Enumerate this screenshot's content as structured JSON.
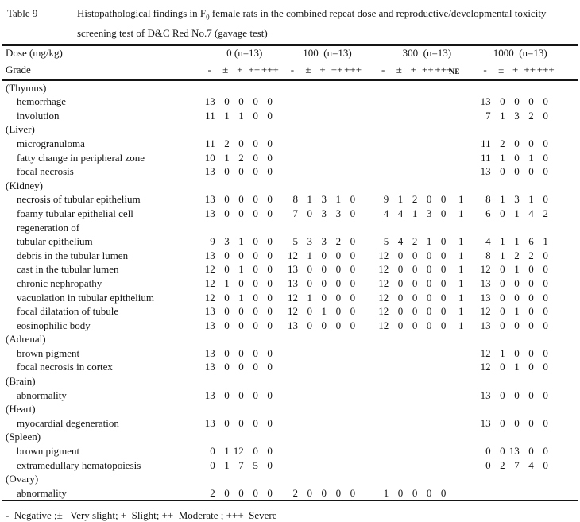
{
  "header": {
    "table_label": "Table 9",
    "title_pre": "Histopathological findings in F",
    "title_sub": "0",
    "title_line1_rest": " female rats in the combined repeat dose and reproductive/developmental toxicity",
    "title_line2": "screening test of D&C Red No.7 (gavage test)"
  },
  "table": {
    "dose_label": "Dose (mg/kg)",
    "grade_label": "Grade",
    "groups": [
      {
        "dose_label": "0 (n=13)",
        "grades": [
          "-",
          "±",
          "+",
          "++",
          "+++"
        ]
      },
      {
        "dose_label": "100  (n=13)",
        "grades": [
          "-",
          "±",
          "+",
          "++",
          "+++"
        ]
      },
      {
        "dose_label": "300  (n=13)",
        "grades": [
          "-",
          "±",
          "+",
          "++",
          "+++",
          "NE"
        ]
      },
      {
        "dose_label": "1000  (n=13)",
        "grades": [
          "-",
          "±",
          "+",
          "++",
          "+++"
        ]
      }
    ],
    "rows": [
      {
        "type": "organ",
        "label": "(Thymus)",
        "values": [
          [],
          [],
          [],
          []
        ]
      },
      {
        "type": "finding",
        "label": "hemorrhage",
        "values": [
          [
            13,
            0,
            0,
            0,
            0
          ],
          [],
          [],
          [
            13,
            0,
            0,
            0,
            0
          ]
        ]
      },
      {
        "type": "finding",
        "label": "involution",
        "values": [
          [
            11,
            1,
            1,
            0,
            0
          ],
          [],
          [],
          [
            7,
            1,
            3,
            2,
            0
          ]
        ]
      },
      {
        "type": "organ",
        "label": "(Liver)",
        "values": [
          [],
          [],
          [],
          []
        ]
      },
      {
        "type": "finding",
        "label": "microgranuloma",
        "values": [
          [
            11,
            2,
            0,
            0,
            0
          ],
          [],
          [],
          [
            11,
            2,
            0,
            0,
            0
          ]
        ]
      },
      {
        "type": "finding",
        "label": "fatty change in peripheral zone",
        "values": [
          [
            10,
            1,
            2,
            0,
            0
          ],
          [],
          [],
          [
            11,
            1,
            0,
            1,
            0
          ]
        ]
      },
      {
        "type": "finding",
        "label": "focal necrosis",
        "values": [
          [
            13,
            0,
            0,
            0,
            0
          ],
          [],
          [],
          [
            13,
            0,
            0,
            0,
            0
          ]
        ]
      },
      {
        "type": "organ",
        "label": "(Kidney)",
        "values": [
          [],
          [],
          [],
          []
        ]
      },
      {
        "type": "finding",
        "label": "necrosis of tubular epithelium",
        "values": [
          [
            13,
            0,
            0,
            0,
            0
          ],
          [
            8,
            1,
            3,
            1,
            0
          ],
          [
            9,
            1,
            2,
            0,
            0,
            1
          ],
          [
            8,
            1,
            3,
            1,
            0
          ]
        ]
      },
      {
        "type": "finding",
        "label": "foamy tubular epithelial cell",
        "values": [
          [
            13,
            0,
            0,
            0,
            0
          ],
          [
            7,
            0,
            3,
            3,
            0
          ],
          [
            4,
            4,
            1,
            3,
            0,
            1
          ],
          [
            6,
            0,
            1,
            4,
            2
          ]
        ]
      },
      {
        "type": "finding",
        "label": "regeneration of",
        "values": [
          [],
          [],
          [],
          []
        ]
      },
      {
        "type": "finding",
        "label": "tubular epithelium",
        "values": [
          [
            9,
            3,
            1,
            0,
            0
          ],
          [
            5,
            3,
            3,
            2,
            0
          ],
          [
            5,
            4,
            2,
            1,
            0,
            1
          ],
          [
            4,
            1,
            1,
            6,
            1
          ]
        ]
      },
      {
        "type": "finding",
        "label": "debris in the tubular lumen",
        "values": [
          [
            13,
            0,
            0,
            0,
            0
          ],
          [
            12,
            1,
            0,
            0,
            0
          ],
          [
            12,
            0,
            0,
            0,
            0,
            1
          ],
          [
            8,
            1,
            2,
            2,
            0
          ]
        ]
      },
      {
        "type": "finding",
        "label": "cast in the tubular lumen",
        "values": [
          [
            12,
            0,
            1,
            0,
            0
          ],
          [
            13,
            0,
            0,
            0,
            0
          ],
          [
            12,
            0,
            0,
            0,
            0,
            1
          ],
          [
            12,
            0,
            1,
            0,
            0
          ]
        ]
      },
      {
        "type": "finding",
        "label": "chronic nephropathy",
        "values": [
          [
            12,
            1,
            0,
            0,
            0
          ],
          [
            13,
            0,
            0,
            0,
            0
          ],
          [
            12,
            0,
            0,
            0,
            0,
            1
          ],
          [
            13,
            0,
            0,
            0,
            0
          ]
        ]
      },
      {
        "type": "finding",
        "label": "vacuolation in tubular epithelium",
        "values": [
          [
            12,
            0,
            1,
            0,
            0
          ],
          [
            12,
            1,
            0,
            0,
            0
          ],
          [
            12,
            0,
            0,
            0,
            0,
            1
          ],
          [
            13,
            0,
            0,
            0,
            0
          ]
        ]
      },
      {
        "type": "finding",
        "label": "focal dilatation of tubule",
        "values": [
          [
            13,
            0,
            0,
            0,
            0
          ],
          [
            12,
            0,
            1,
            0,
            0
          ],
          [
            12,
            0,
            0,
            0,
            0,
            1
          ],
          [
            12,
            0,
            1,
            0,
            0
          ]
        ]
      },
      {
        "type": "finding",
        "label": "eosinophilic body",
        "values": [
          [
            13,
            0,
            0,
            0,
            0
          ],
          [
            13,
            0,
            0,
            0,
            0
          ],
          [
            12,
            0,
            0,
            0,
            0,
            1
          ],
          [
            13,
            0,
            0,
            0,
            0
          ]
        ]
      },
      {
        "type": "organ",
        "label": "(Adrenal)",
        "values": [
          [],
          [],
          [],
          []
        ]
      },
      {
        "type": "finding",
        "label": "brown pigment",
        "values": [
          [
            13,
            0,
            0,
            0,
            0
          ],
          [],
          [],
          [
            12,
            1,
            0,
            0,
            0
          ]
        ]
      },
      {
        "type": "finding",
        "label": "focal necrosis in cortex",
        "values": [
          [
            13,
            0,
            0,
            0,
            0
          ],
          [],
          [],
          [
            12,
            0,
            1,
            0,
            0
          ]
        ]
      },
      {
        "type": "organ",
        "label": "(Brain)",
        "values": [
          [],
          [],
          [],
          []
        ]
      },
      {
        "type": "finding",
        "label": "abnormality",
        "values": [
          [
            13,
            0,
            0,
            0,
            0
          ],
          [],
          [],
          [
            13,
            0,
            0,
            0,
            0
          ]
        ]
      },
      {
        "type": "organ",
        "label": "(Heart)",
        "values": [
          [],
          [],
          [],
          []
        ]
      },
      {
        "type": "finding",
        "label": "myocardial degeneration",
        "values": [
          [
            13,
            0,
            0,
            0,
            0
          ],
          [],
          [],
          [
            13,
            0,
            0,
            0,
            0
          ]
        ]
      },
      {
        "type": "organ",
        "label": "(Spleen)",
        "values": [
          [],
          [],
          [],
          []
        ]
      },
      {
        "type": "finding",
        "label": "brown pigment",
        "values": [
          [
            0,
            1,
            12,
            0,
            0
          ],
          [],
          [],
          [
            0,
            0,
            13,
            0,
            0
          ]
        ]
      },
      {
        "type": "finding",
        "label": "extramedullary hematopoiesis",
        "values": [
          [
            0,
            1,
            7,
            5,
            0
          ],
          [],
          [],
          [
            0,
            2,
            7,
            4,
            0
          ]
        ]
      },
      {
        "type": "organ",
        "label": "(Ovary)",
        "values": [
          [],
          [],
          [],
          []
        ]
      },
      {
        "type": "finding",
        "label": "abnormality",
        "values": [
          [
            2,
            0,
            0,
            0,
            0
          ],
          [
            2,
            0,
            0,
            0,
            0
          ],
          [
            1,
            0,
            0,
            0,
            0
          ],
          []
        ]
      }
    ]
  },
  "footnote": "-  Negative ;±   Very slight; +  Slight; ++  Moderate ; +++  Severe",
  "colors": {
    "text": "#151515",
    "background": "#ffffff",
    "rule": "#151515"
  }
}
